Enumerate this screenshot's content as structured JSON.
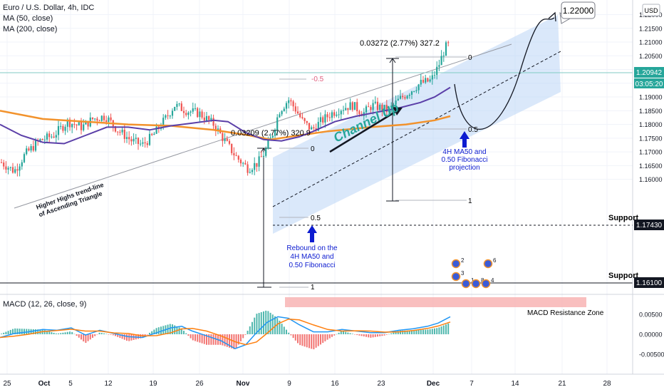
{
  "header": {
    "symbol_line": "Euro / U.S. Dollar, 4h, IDC",
    "ma50_label": "MA (50, close)",
    "ma200_label": "MA (200, close)",
    "currency": "USD"
  },
  "macd": {
    "label": "MACD (12, 26, close, 9)",
    "resistance_label": "MACD Resistance Zone"
  },
  "annotations": {
    "target": "1.22000",
    "channel_up": "Channel Up",
    "trendline": "Higher Highs trend-line\nof Ascending Triangle",
    "rebound": "Rebound on the\n4H MA50 and\n0.50 Fibonacci",
    "projection": "4H MA50 and\n0.50 Fibonacci\nprojection",
    "measure1": "0.03209 (2.77%) 320.9",
    "measure2": "0.03272 (2.77%) 327.2",
    "fib_neg": "-0.5",
    "support1": "Support",
    "support2": "Support",
    "fib1_0": "0",
    "fib1_05": "0.5",
    "fib1_1": "1",
    "fib2_0": "0",
    "fib2_05": "0.5",
    "fib2_1": "1",
    "events": [
      "2",
      "6",
      "3",
      "1",
      "8",
      "4"
    ]
  },
  "price_badges": {
    "current": "1.20942",
    "countdown": "03:05:20",
    "support_high": "1.17430",
    "support_low": "1.16100"
  },
  "colors": {
    "up": "#26a69a",
    "down": "#ef5350",
    "ma50": "#5b3fa8",
    "ma200": "#f2922c",
    "channel": "#bbd6f5",
    "macd_line": "#2196f3",
    "signal_line": "#ff7f0e",
    "resistance_zone": "#f8b8b8"
  },
  "chart_data": {
    "type": "candlestick",
    "timeframe": "4h",
    "y_axis": {
      "range": [
        1.1597,
        1.2259
      ],
      "ticks": [
        "1.22000",
        "1.21500",
        "1.21000",
        "1.20500",
        "1.20000",
        "1.19500",
        "1.19000",
        "1.18500",
        "1.18000",
        "1.17500",
        "1.17000",
        "1.16500",
        "1.16000"
      ]
    },
    "macd_axis": {
      "ticks": [
        "0.00500",
        "0.00000",
        "-0.00500"
      ]
    },
    "x_axis": {
      "ticks": [
        "25",
        "Oct",
        "5",
        "12",
        "19",
        "26",
        "Nov",
        "9",
        "16",
        "23",
        "Dec",
        "7",
        "14",
        "21",
        "28"
      ]
    },
    "key_prices": {
      "current": 1.20942,
      "target": 1.22,
      "support_1": 1.1743,
      "support_2": 1.161
    }
  }
}
